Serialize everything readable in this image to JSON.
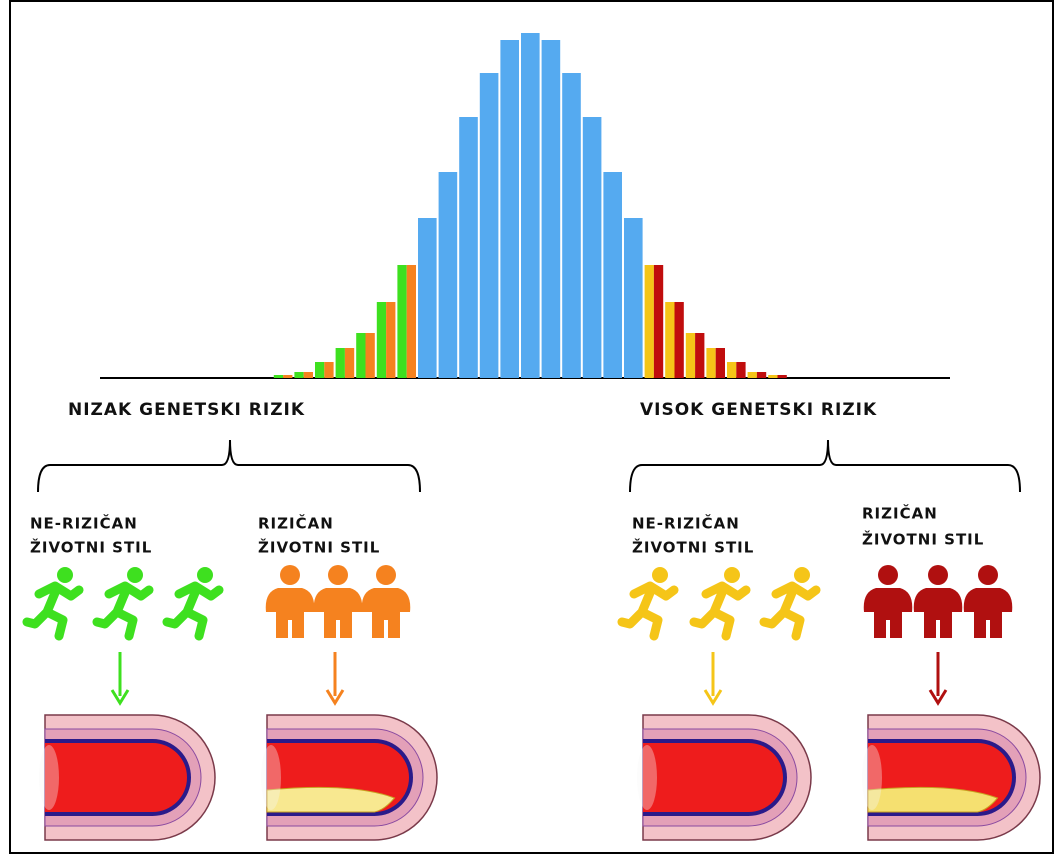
{
  "labels": {
    "low": "NIZAK GENETSKI RIZIK",
    "high": "VISOK GENETSKI RIZIK"
  },
  "groups": [
    {
      "line1": "NE-RIZIČAN",
      "line2": "ŽIVOTNI STIL"
    },
    {
      "line1": "RIZIČAN",
      "line2": "ŽIVOTNI STIL"
    },
    {
      "line1": "NE-RIZIČAN",
      "line2": "ŽIVOTNI STIL"
    },
    {
      "line1": "RIZIČAN",
      "line2": "ŽIVOTNI STIL"
    }
  ]
}
